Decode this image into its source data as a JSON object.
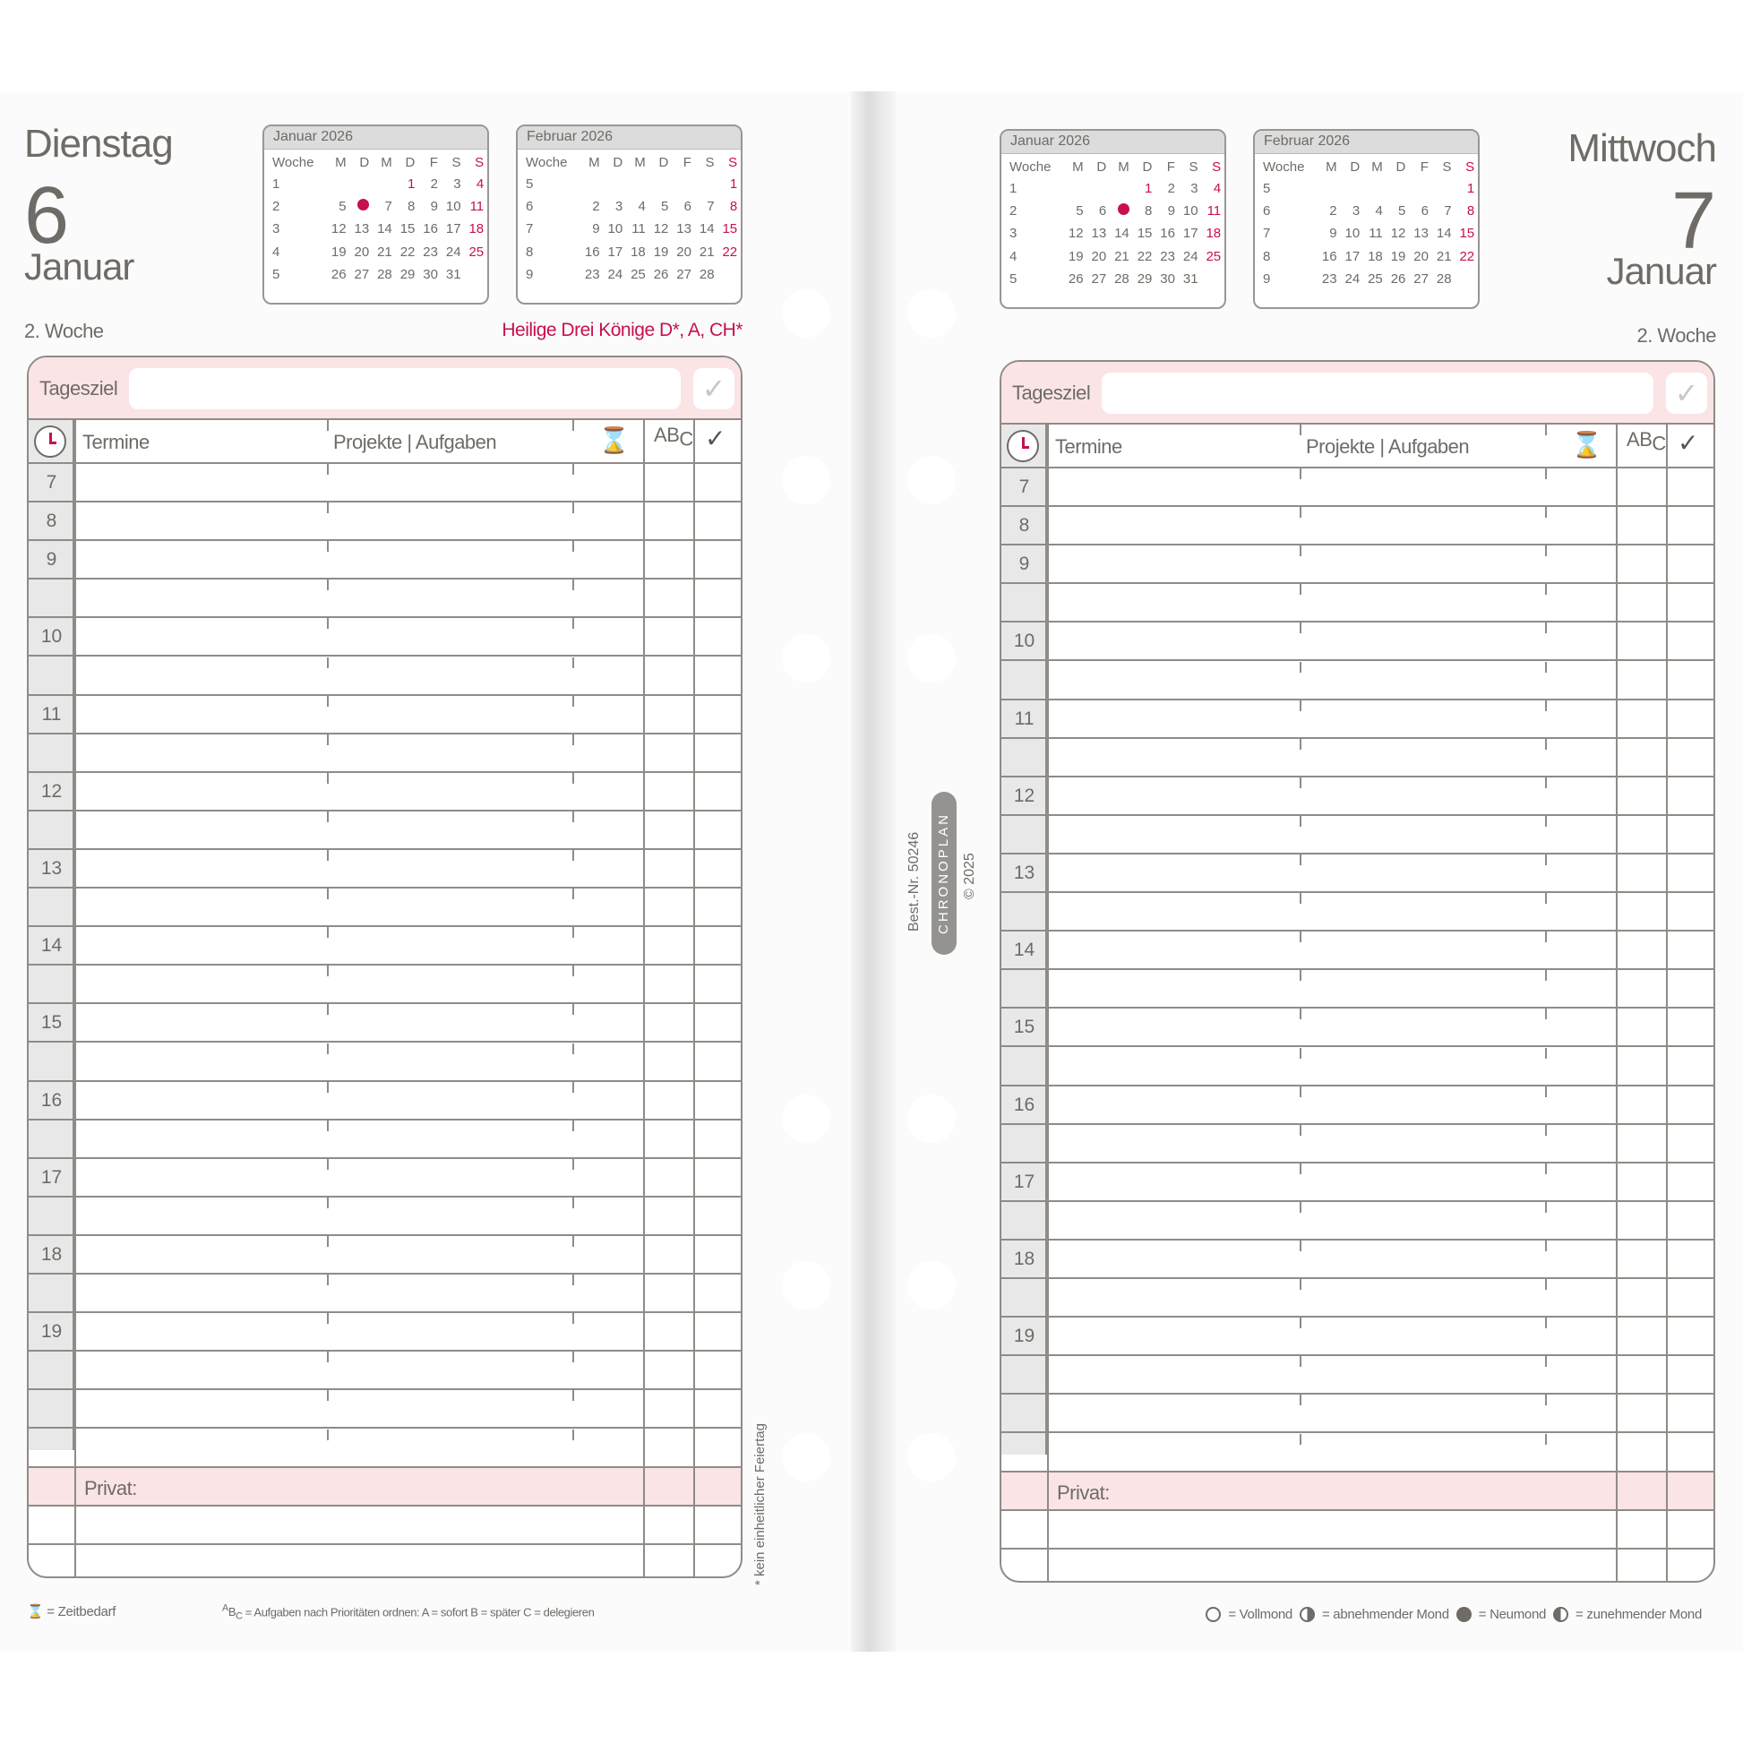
{
  "colors": {
    "accent": "#c8104b",
    "pink_bg": "#fbe4e6",
    "text": "#6f6b66"
  },
  "mini_calendars": [
    {
      "title": "Januar 2026",
      "header": [
        "Woche",
        "M",
        "D",
        "M",
        "D",
        "F",
        "S",
        "S"
      ],
      "weeks": [
        [
          "1",
          "",
          "",
          "",
          "1",
          "2",
          "3",
          "4"
        ],
        [
          "2",
          "5",
          "6",
          "7",
          "8",
          "9",
          "10",
          "11"
        ],
        [
          "3",
          "12",
          "13",
          "14",
          "15",
          "16",
          "17",
          "18"
        ],
        [
          "4",
          "19",
          "20",
          "21",
          "22",
          "23",
          "24",
          "25"
        ],
        [
          "5",
          "26",
          "27",
          "28",
          "29",
          "30",
          "31",
          ""
        ]
      ],
      "holidays": [
        "1"
      ],
      "marked_day": "6"
    },
    {
      "title": "Februar 2026",
      "header": [
        "Woche",
        "M",
        "D",
        "M",
        "D",
        "F",
        "S",
        "S"
      ],
      "weeks": [
        [
          "5",
          "",
          "",
          "",
          "",
          "",
          "",
          "1"
        ],
        [
          "6",
          "2",
          "3",
          "4",
          "5",
          "6",
          "7",
          "8"
        ],
        [
          "7",
          "9",
          "10",
          "11",
          "12",
          "13",
          "14",
          "15"
        ],
        [
          "8",
          "16",
          "17",
          "18",
          "19",
          "20",
          "21",
          "22"
        ],
        [
          "9",
          "23",
          "24",
          "25",
          "26",
          "27",
          "28",
          ""
        ]
      ],
      "holidays": [],
      "marked_day": null
    }
  ],
  "pages": [
    {
      "day_name": "Dienstag",
      "day_number": "6",
      "month": "Januar",
      "week": "2. Woche",
      "holiday": "Heilige Drei Könige D*, A, CH*",
      "marked_day": "6"
    },
    {
      "day_name": "Mittwoch",
      "day_number": "7",
      "month": "Januar",
      "week": "2. Woche",
      "holiday": "",
      "marked_day": "7"
    }
  ],
  "grid": {
    "goal_label": "Tagesziel",
    "goal_check": "✓",
    "termine": "Termine",
    "projekte": "Projekte | Aufgaben",
    "abc_a": "A",
    "abc_b": "B",
    "abc_c": "C",
    "check": "✓",
    "private": "Privat:",
    "hours": [
      "7",
      "8",
      "9",
      "",
      "10",
      "",
      "11",
      "",
      "12",
      "",
      "13",
      "",
      "14",
      "",
      "15",
      "",
      "16",
      "",
      "17",
      "",
      "18",
      "",
      "19",
      "",
      "",
      ""
    ]
  },
  "footer_left": {
    "time_legend": "= Zeitbedarf",
    "priority_legend": "= Aufgaben nach Prioritäten ordnen:  A = sofort   B = später   C = delegieren",
    "holiday_note": "* kein einheitlicher Feiertag"
  },
  "footer_right": {
    "full": "= Vollmond",
    "waning": "= abnehmender Mond",
    "new": "= Neumond",
    "waxing": "= zunehmender Mond"
  },
  "spine": {
    "order_no": "Best.-Nr. 50246",
    "brand": "CHRONOPLAN",
    "copyright": "© 2025"
  }
}
